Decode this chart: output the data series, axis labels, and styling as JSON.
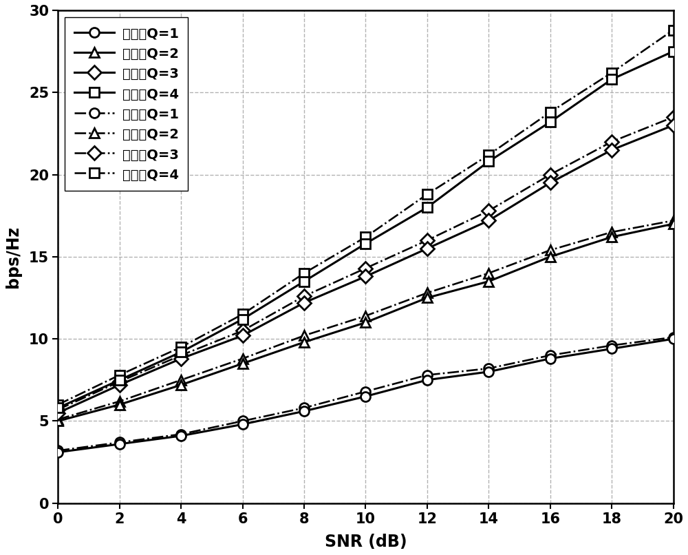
{
  "snr": [
    0,
    2,
    4,
    6,
    8,
    10,
    12,
    14,
    16,
    18,
    20
  ],
  "series": {
    "benming_Q1": [
      3.1,
      3.6,
      4.1,
      4.8,
      5.6,
      6.5,
      7.5,
      8.0,
      8.8,
      9.4,
      10.0
    ],
    "benming_Q2": [
      5.0,
      6.0,
      7.2,
      8.5,
      9.8,
      11.0,
      12.5,
      13.5,
      15.0,
      16.2,
      17.0
    ],
    "benming_Q3": [
      5.5,
      7.2,
      8.8,
      10.2,
      12.2,
      13.8,
      15.5,
      17.2,
      19.5,
      21.5,
      23.0
    ],
    "benming_Q4": [
      5.8,
      7.5,
      9.2,
      11.2,
      13.5,
      15.8,
      18.0,
      20.8,
      23.2,
      25.8,
      27.5
    ],
    "shengxufa_Q1": [
      3.2,
      3.7,
      4.2,
      5.0,
      5.8,
      6.8,
      7.8,
      8.2,
      9.0,
      9.6,
      10.1
    ],
    "shengxufa_Q2": [
      5.1,
      6.2,
      7.5,
      8.8,
      10.2,
      11.4,
      12.8,
      14.0,
      15.4,
      16.5,
      17.2
    ],
    "shengxufa_Q3": [
      5.7,
      7.4,
      9.0,
      10.5,
      12.6,
      14.3,
      16.0,
      17.8,
      20.0,
      22.0,
      23.5
    ],
    "shengxufa_Q4": [
      6.0,
      7.8,
      9.5,
      11.5,
      14.0,
      16.2,
      18.8,
      21.2,
      23.8,
      26.2,
      28.8
    ]
  },
  "xlabel": "SNR (dB)",
  "ylabel": "bps/Hz",
  "xlim": [
    0,
    20
  ],
  "ylim": [
    0,
    30
  ],
  "xticks": [
    0,
    2,
    4,
    6,
    8,
    10,
    12,
    14,
    16,
    18,
    20
  ],
  "yticks": [
    0,
    5,
    10,
    15,
    20,
    25,
    30
  ],
  "legend_labels": [
    "本发明Q=1",
    "本发明Q=2",
    "本发明Q=3",
    "本发明Q=4",
    "升序法Q=1",
    "升序法Q=2",
    "升序法Q=3",
    "升序法Q=4"
  ],
  "markers": [
    "o",
    "^",
    "D",
    "s",
    "o",
    "^",
    "D",
    "s"
  ],
  "linewidth": 2.2,
  "markersize": 10,
  "markeredgewidth": 2.0,
  "grid_color": "#aaaaaa",
  "font_size_legend": 14,
  "font_size_label": 17,
  "font_size_tick": 15
}
